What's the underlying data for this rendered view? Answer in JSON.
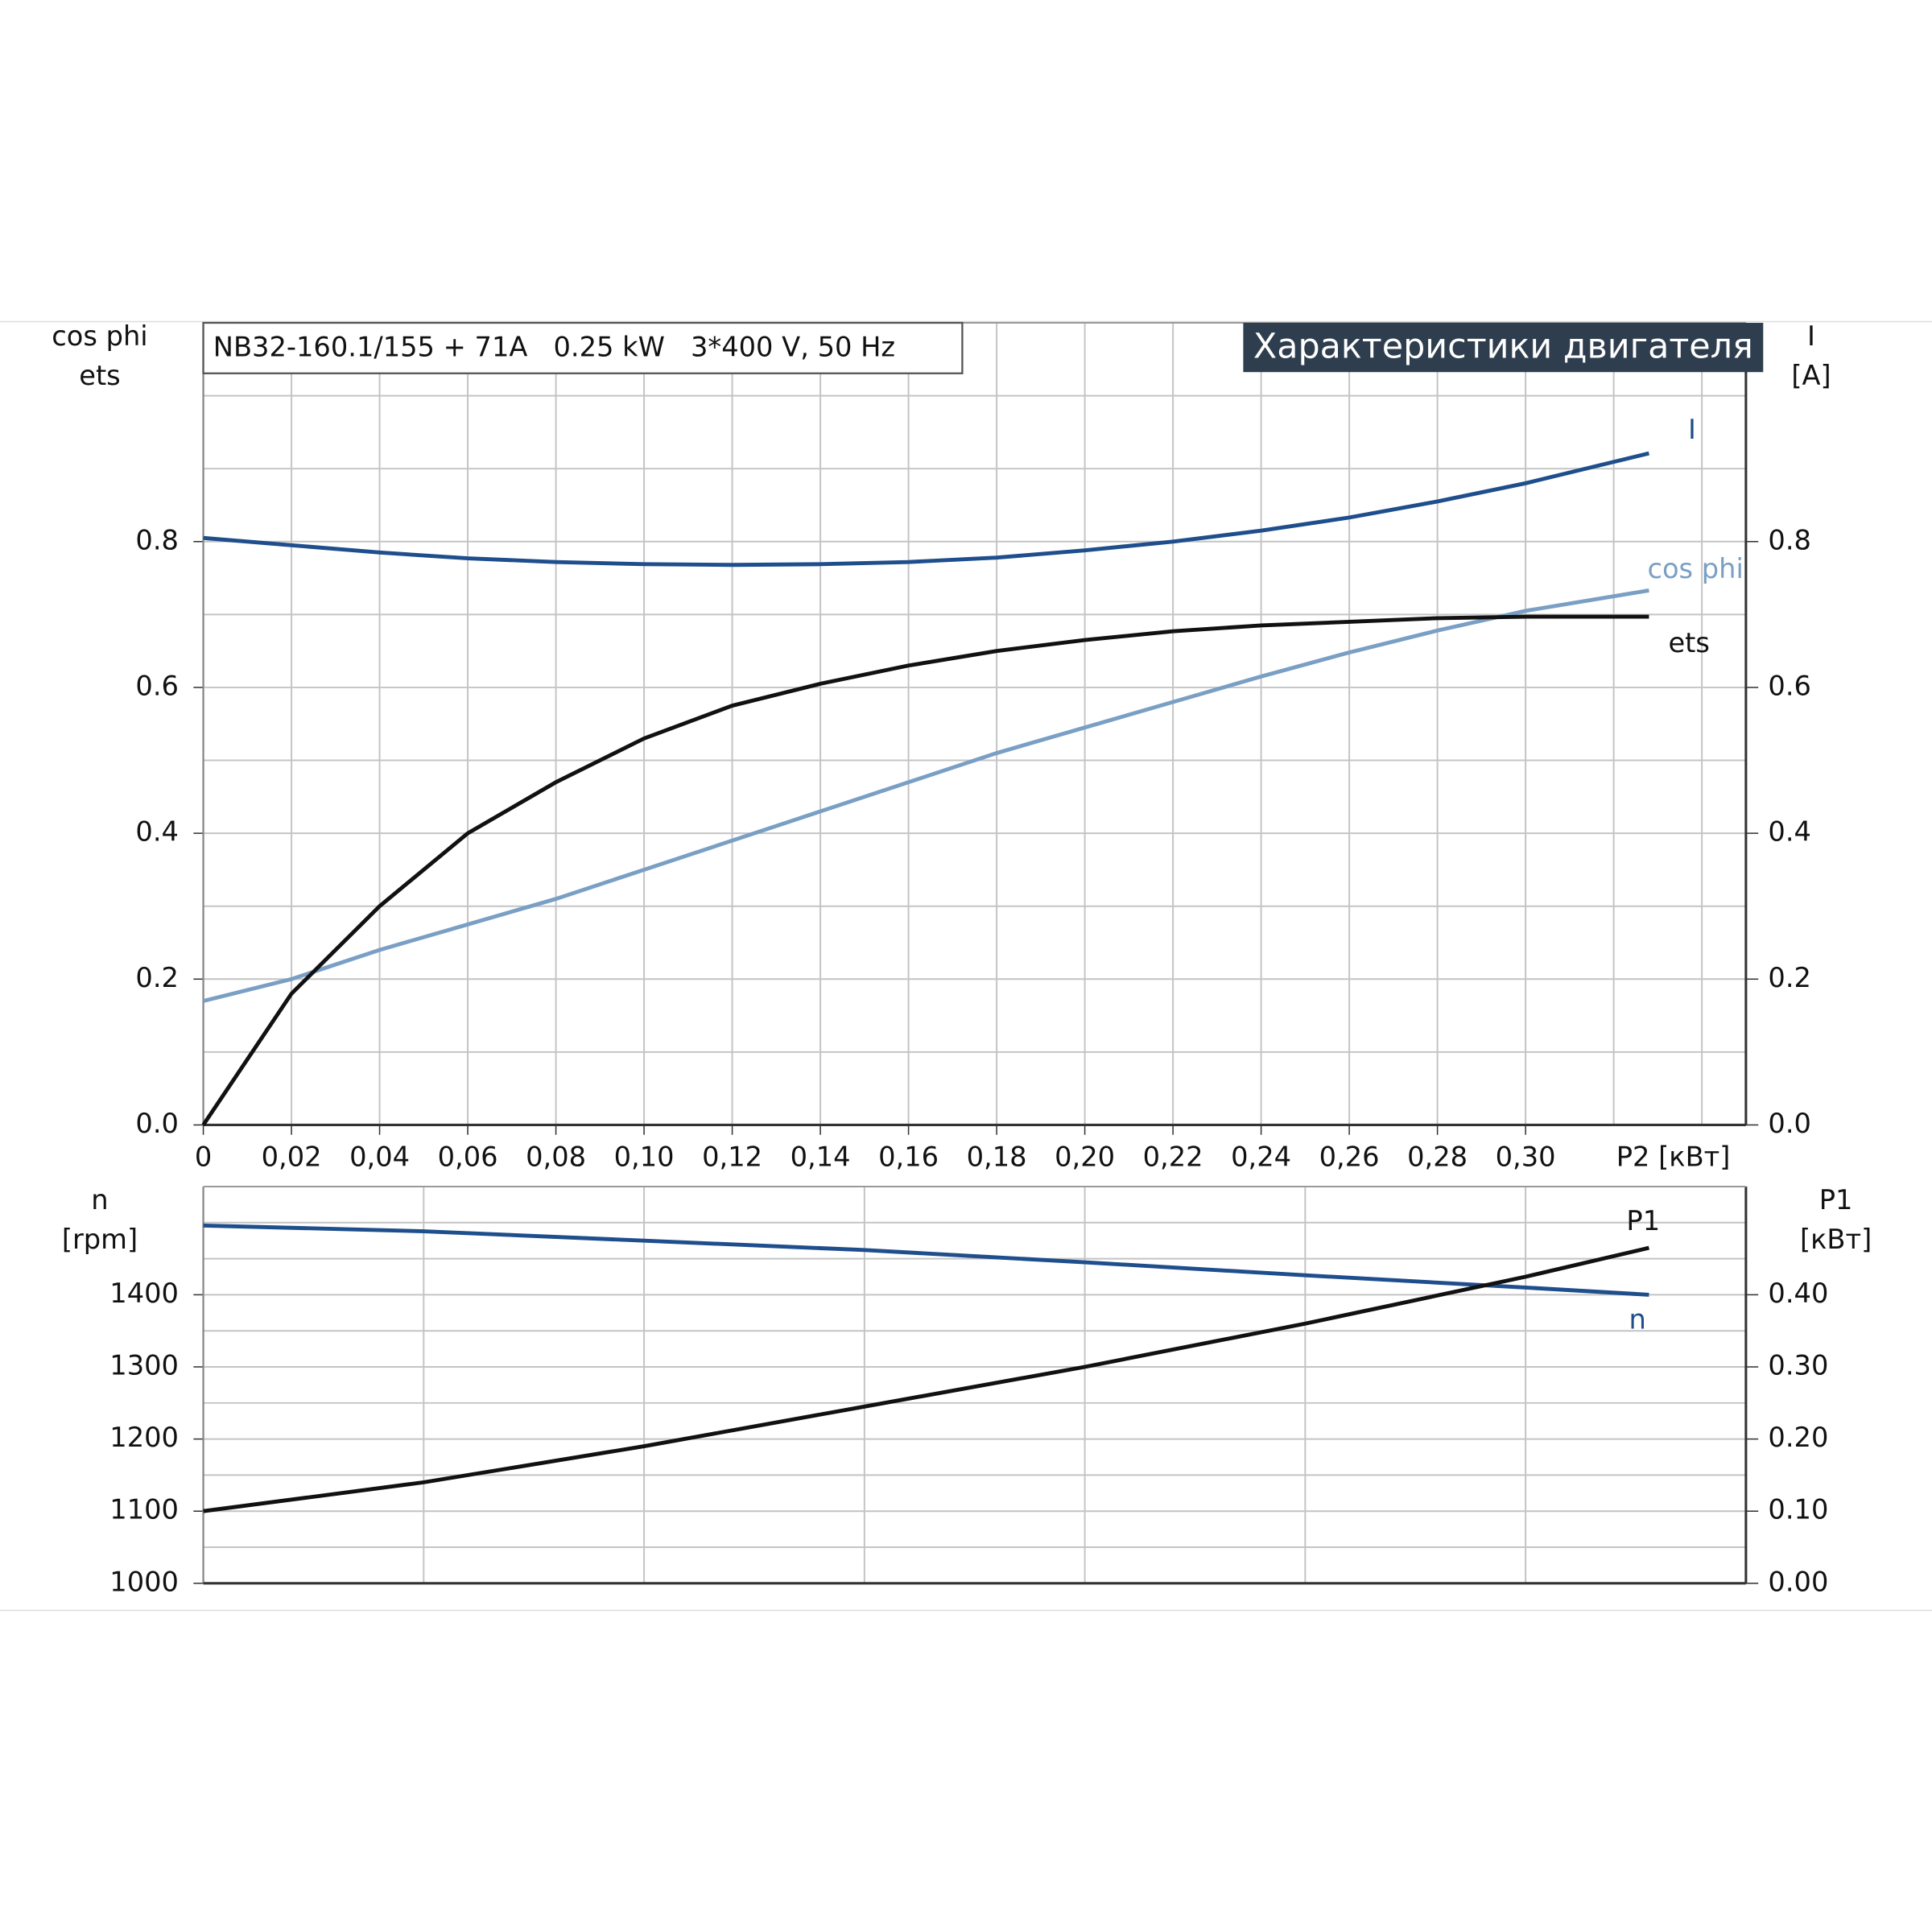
{
  "chart_data": [
    {
      "type": "line",
      "title": "NB32-160.1/155 + 71A   0.25 kW   3*400 V, 50 Hz",
      "subtitle": "Характеристики двигателя",
      "ylabel": [
        "cos phi",
        "ets"
      ],
      "y2label": [
        "I",
        "[A]"
      ],
      "xlabel": "P2 [кВт]",
      "xlim": [
        0,
        0.35
      ],
      "xticks": [
        0,
        {
          "value": 0.02,
          "label": "0,02"
        },
        {
          "value": 0.04,
          "label": "0,04"
        },
        {
          "value": 0.06,
          "label": "0,06"
        },
        {
          "value": 0.08,
          "label": "0,08"
        },
        {
          "value": 0.1,
          "label": "0,10"
        },
        {
          "value": 0.12,
          "label": "0,12"
        },
        {
          "value": 0.14,
          "label": "0,14"
        },
        {
          "value": 0.16,
          "label": "0,16"
        },
        {
          "value": 0.18,
          "label": "0,18"
        },
        {
          "value": 0.2,
          "label": "0,20"
        },
        {
          "value": 0.22,
          "label": "0,22"
        },
        {
          "value": 0.24,
          "label": "0,24"
        },
        {
          "value": 0.26,
          "label": "0,26"
        },
        {
          "value": 0.28,
          "label": "0,28"
        },
        {
          "value": 0.3,
          "label": "0,30"
        }
      ],
      "xgrid": [
        0.32,
        0.34
      ],
      "ylim": [
        0,
        1.1
      ],
      "yticks": [
        {
          "value": 0,
          "label": "0.0"
        },
        0.2,
        0.4,
        0.6,
        0.8
      ],
      "ygrid": [
        0.1,
        0.3,
        0.5,
        0.7,
        0.9,
        1.0
      ],
      "y2lim": [
        0,
        1.1
      ],
      "y2ticks": [
        {
          "value": 0,
          "label": "0.0"
        },
        0.2,
        0.4,
        0.6,
        0.8
      ],
      "grid": true,
      "x": [
        0,
        0.02,
        0.04,
        0.06,
        0.08,
        0.1,
        0.12,
        0.14,
        0.16,
        0.18,
        0.2,
        0.22,
        0.24,
        0.26,
        0.28,
        0.3,
        0.328
      ],
      "series": [
        {
          "name": "I",
          "color": "#1f4e8c",
          "axis": "y2",
          "values": [
            0.805,
            0.795,
            0.785,
            0.777,
            0.772,
            0.769,
            0.768,
            0.769,
            0.772,
            0.778,
            0.788,
            0.8,
            0.815,
            0.833,
            0.855,
            0.88,
            0.921
          ]
        },
        {
          "name": "cos phi",
          "color": "#7a9fc4",
          "values": [
            0.17,
            0.2,
            0.24,
            0.275,
            0.31,
            0.35,
            0.39,
            0.43,
            0.47,
            0.51,
            0.545,
            0.58,
            0.615,
            0.648,
            0.678,
            0.705,
            0.733
          ]
        },
        {
          "name": "ets",
          "color": "#111111",
          "values": [
            0,
            0.18,
            0.3,
            0.4,
            0.47,
            0.53,
            0.575,
            0.605,
            0.63,
            0.65,
            0.665,
            0.677,
            0.685,
            0.69,
            0.695,
            0.697,
            0.697
          ]
        }
      ]
    },
    {
      "type": "line",
      "ylabel": [
        "n",
        "[rpm]"
      ],
      "y2label": [
        "P1",
        "[кВт]"
      ],
      "xlim": [
        0,
        0.35
      ],
      "xgrid": [
        0.05,
        0.1,
        0.15,
        0.2,
        0.25,
        0.3
      ],
      "ylim": [
        1000,
        1550
      ],
      "yticks": [
        1000,
        1100,
        1200,
        1300,
        1400
      ],
      "ygrid": [
        1050,
        1150,
        1250,
        1350,
        1450,
        1500
      ],
      "y2lim": [
        0,
        0.55
      ],
      "y2ticks": [
        {
          "value": 0,
          "label": "0.00"
        },
        {
          "value": 0.1,
          "label": "0.10"
        },
        {
          "value": 0.2,
          "label": "0.20"
        },
        {
          "value": 0.3,
          "label": "0.30"
        },
        {
          "value": 0.4,
          "label": "0.40"
        }
      ],
      "grid": true,
      "x": [
        0,
        0.05,
        0.1,
        0.15,
        0.2,
        0.25,
        0.3,
        0.328
      ],
      "series": [
        {
          "name": "n",
          "color": "#1f4e8c",
          "values": [
            1496,
            1488,
            1475,
            1462,
            1445,
            1427,
            1410,
            1400
          ]
        },
        {
          "name": "P1",
          "color": "#111111",
          "axis": "y2",
          "values": [
            0.1,
            0.14,
            0.19,
            0.245,
            0.3,
            0.36,
            0.425,
            0.465
          ]
        }
      ]
    }
  ]
}
